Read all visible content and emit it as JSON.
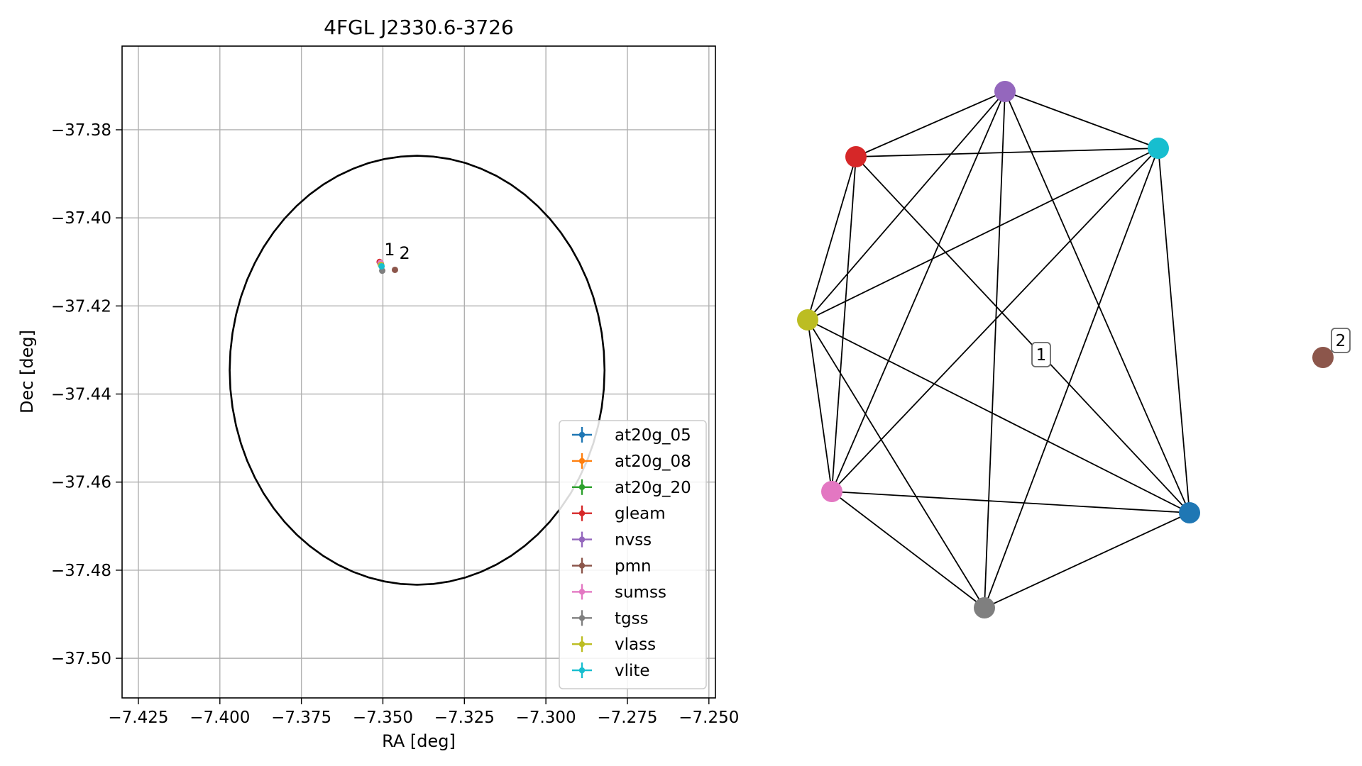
{
  "chart_data": [
    {
      "type": "scatter",
      "title": "4FGL J2330.6-3726",
      "xlabel": "RA [deg]",
      "ylabel": "Dec [deg]",
      "xlim": [
        -7.43,
        -7.248
      ],
      "ylim": [
        -37.509,
        -37.361
      ],
      "grid": true,
      "xticks": [
        -7.425,
        -7.4,
        -7.375,
        -7.35,
        -7.325,
        -7.3,
        -7.275,
        -7.25
      ],
      "xtick_labels": [
        "−7.425",
        "−7.400",
        "−7.375",
        "−7.350",
        "−7.325",
        "−7.300",
        "−7.275",
        "−7.250"
      ],
      "yticks": [
        -37.38,
        -37.4,
        -37.42,
        -37.44,
        -37.46,
        -37.48,
        -37.5
      ],
      "ytick_labels": [
        "−37.38",
        "−37.40",
        "−37.42",
        "−37.44",
        "−37.46",
        "−37.48",
        "−37.50"
      ],
      "ellipse": {
        "center_ra": -7.3395,
        "center_dec": -37.4346,
        "semi_axis_ra": 0.0575,
        "semi_axis_dec": 0.0487,
        "color": "#000000"
      },
      "legend_position": "lower-right",
      "series": [
        {
          "name": "at20g_05",
          "color": "#1f77b4",
          "points": [
            {
              "ra": -7.3506,
              "dec": -37.4105
            }
          ]
        },
        {
          "name": "at20g_08",
          "color": "#ff7f0e",
          "points": [
            {
              "ra": -7.3506,
              "dec": -37.4105
            }
          ]
        },
        {
          "name": "at20g_20",
          "color": "#2ca02c",
          "points": [
            {
              "ra": -7.3506,
              "dec": -37.4105
            }
          ]
        },
        {
          "name": "gleam",
          "color": "#d62728",
          "points": [
            {
              "ra": -7.351,
              "dec": -37.41
            }
          ]
        },
        {
          "name": "nvss",
          "color": "#9467bd",
          "points": [
            {
              "ra": -7.3508,
              "dec": -37.4103
            }
          ]
        },
        {
          "name": "pmn",
          "color": "#8c564b",
          "points": [
            {
              "ra": -7.3463,
              "dec": -37.4118
            }
          ]
        },
        {
          "name": "sumss",
          "color": "#e377c2",
          "points": [
            {
              "ra": -7.3507,
              "dec": -37.4102
            }
          ]
        },
        {
          "name": "tgss",
          "color": "#7f7f7f",
          "points": [
            {
              "ra": -7.3502,
              "dec": -37.412
            }
          ]
        },
        {
          "name": "vlass",
          "color": "#bcbd22",
          "points": [
            {
              "ra": -7.3506,
              "dec": -37.4107
            }
          ]
        },
        {
          "name": "vlite",
          "color": "#17becf",
          "points": [
            {
              "ra": -7.3504,
              "dec": -37.411
            }
          ]
        }
      ],
      "annotations": [
        {
          "text": "1",
          "ra": -7.3496,
          "dec": -37.4085
        },
        {
          "text": "2",
          "ra": -7.345,
          "dec": -37.4093
        }
      ]
    },
    {
      "type": "network",
      "group_labels": [
        "1",
        "2"
      ],
      "nodes": [
        {
          "id": "nvss",
          "color": "#9467bd"
        },
        {
          "id": "vlite",
          "color": "#17becf"
        },
        {
          "id": "gleam",
          "color": "#d62728"
        },
        {
          "id": "vlass",
          "color": "#bcbd22"
        },
        {
          "id": "sumss",
          "color": "#e377c2"
        },
        {
          "id": "at20g_05",
          "color": "#1f77b4"
        },
        {
          "id": "tgss",
          "color": "#7f7f7f"
        },
        {
          "id": "pmn",
          "color": "#8c564b"
        }
      ],
      "edges": [
        [
          "nvss",
          "gleam"
        ],
        [
          "nvss",
          "vlite"
        ],
        [
          "nvss",
          "vlass"
        ],
        [
          "nvss",
          "sumss"
        ],
        [
          "nvss",
          "at20g_05"
        ],
        [
          "nvss",
          "tgss"
        ],
        [
          "gleam",
          "vlite"
        ],
        [
          "gleam",
          "vlass"
        ],
        [
          "gleam",
          "sumss"
        ],
        [
          "gleam",
          "at20g_05"
        ],
        [
          "vlite",
          "vlass"
        ],
        [
          "vlite",
          "sumss"
        ],
        [
          "vlite",
          "at20g_05"
        ],
        [
          "vlite",
          "tgss"
        ],
        [
          "vlass",
          "sumss"
        ],
        [
          "vlass",
          "at20g_05"
        ],
        [
          "vlass",
          "tgss"
        ],
        [
          "sumss",
          "at20g_05"
        ],
        [
          "sumss",
          "tgss"
        ],
        [
          "at20g_05",
          "tgss"
        ]
      ]
    }
  ]
}
